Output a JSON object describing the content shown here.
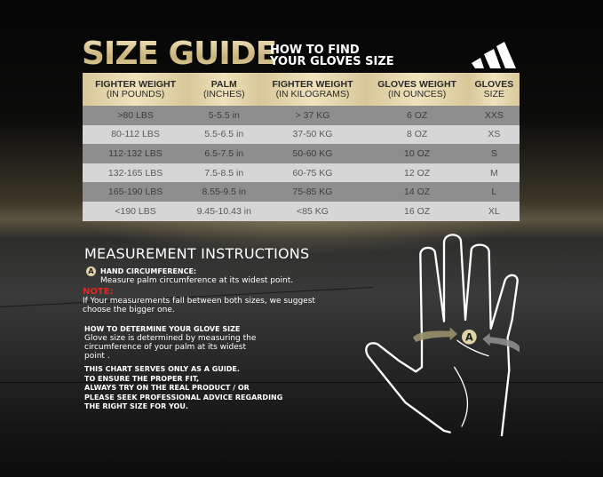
{
  "header": {
    "title": "SIZE GUIDE",
    "subtitle_line1": "HOW TO FIND",
    "subtitle_line2": "YOUR GLOVES SIZE",
    "logo": "adidas-logo"
  },
  "table": {
    "columns": [
      {
        "line1": "FIGHTER WEIGHT",
        "line2": "(IN POUNDS)"
      },
      {
        "line1": "PALM",
        "line2": "(INCHES)"
      },
      {
        "line1": "FIGHTER WEIGHT",
        "line2": "(IN KILOGRAMS)"
      },
      {
        "line1": "GLOVES WEIGHT",
        "line2": "(IN OUNCES)"
      },
      {
        "line1": "GLOVES",
        "line2": "SIZE"
      }
    ],
    "rows": [
      [
        ">80 LBS",
        "5-5.5 in",
        "> 37 KG",
        "6 OZ",
        "XXS"
      ],
      [
        "80-112 LBS",
        "5.5-6.5 in",
        "37-50 KG",
        "8 OZ",
        "XS"
      ],
      [
        "112-132 LBS",
        "6.5-7.5 in",
        "50-60 KG",
        "10 OZ",
        "S"
      ],
      [
        "132-165 LBS",
        "7.5-8.5 in",
        "60-75 KG",
        "12 OZ",
        "M"
      ],
      [
        "165-190 LBS",
        "8.55-9.5 in",
        "75-85 KG",
        "14 OZ",
        "L"
      ],
      [
        "<190 LBS",
        "9.45-10.43 in",
        "<85 KG",
        "16 OZ",
        "XL"
      ]
    ]
  },
  "instructions": {
    "title": "MEASUREMENT INSTRUCTIONS",
    "marker": "A",
    "hand_heading": "HAND CIRCUMFERENCE:",
    "hand_text": "Measure palm circumference at its widest point.",
    "note_label": "NOTE:",
    "note_line1": "If Your measurements fall between both sizes, we suggest",
    "note_line2": "choose the bigger one.",
    "determine_heading": "HOW TO DETERMINE YOUR GLOVE SIZE",
    "determine_line1": "Glove size is determined by measuring the",
    "determine_line2": "circumference of your palm at its widest",
    "determine_line3": "point .",
    "disclaimer": [
      "THIS CHART SERVES ONLY AS A GUIDE.",
      "TO ENSURE THE PROPER FIT,",
      "ALWAYS TRY ON THE REAL PRODUCT / OR",
      "PLEASE SEEK PROFESSIONAL ADVICE REGARDING",
      "THE RIGHT SIZE FOR YOU."
    ]
  },
  "colors": {
    "gold": "#d8c899",
    "note_red": "#e02626",
    "row_dark": "#8e8e8e",
    "row_light": "#d6d6d6"
  }
}
